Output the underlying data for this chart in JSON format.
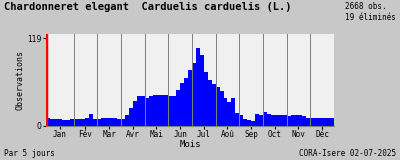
{
  "title": "Chardonneret elegant  Carduelis carduelis (L.)",
  "title_right": "2668 obs.\n19 éliminés",
  "xlabel": "Mois",
  "ylabel": "Observations",
  "ylabel_bottom": "Par 5 jours",
  "bottom_right": "CORA-Isere 02-07-2025",
  "yticks": [
    0,
    119
  ],
  "bar_color": "#0000ff",
  "background_color": "#c8c8c8",
  "plot_background": "#f0f0f0",
  "yline_color": "#ff0000",
  "bar_values": [
    10,
    9,
    9,
    9,
    8,
    8,
    9,
    9,
    9,
    9,
    10,
    16,
    9,
    9,
    10,
    11,
    11,
    10,
    9,
    9,
    14,
    24,
    33,
    40,
    40,
    38,
    40,
    41,
    42,
    41,
    41,
    40,
    40,
    48,
    58,
    65,
    75,
    85,
    105,
    96,
    73,
    62,
    57,
    52,
    47,
    37,
    32,
    38,
    17,
    14,
    9,
    7,
    6,
    16,
    14,
    19,
    16,
    15,
    15,
    14,
    14,
    13,
    15,
    15,
    14,
    13,
    11,
    11,
    11,
    11,
    11,
    11,
    11
  ],
  "month_labels": [
    "Jan",
    "Fév",
    "Mar",
    "Avr",
    "Mai",
    "Jun",
    "Jul",
    "Aoû",
    "Sep",
    "Oct",
    "Nov",
    "Déc"
  ],
  "month_tick_positions": [
    3,
    9.5,
    15.5,
    21.5,
    27.5,
    33.5,
    39.5,
    45.5,
    51.5,
    57.5,
    63.5,
    69.5
  ],
  "vline_positions": [
    6.5,
    12.5,
    18.5,
    24.5,
    30.5,
    36.5,
    42.5,
    48.5,
    54.5,
    60.5,
    66.5
  ],
  "ylim": [
    0,
    125
  ],
  "xlim": [
    -0.5,
    72.5
  ],
  "figsize": [
    4.0,
    1.6
  ],
  "dpi": 100
}
